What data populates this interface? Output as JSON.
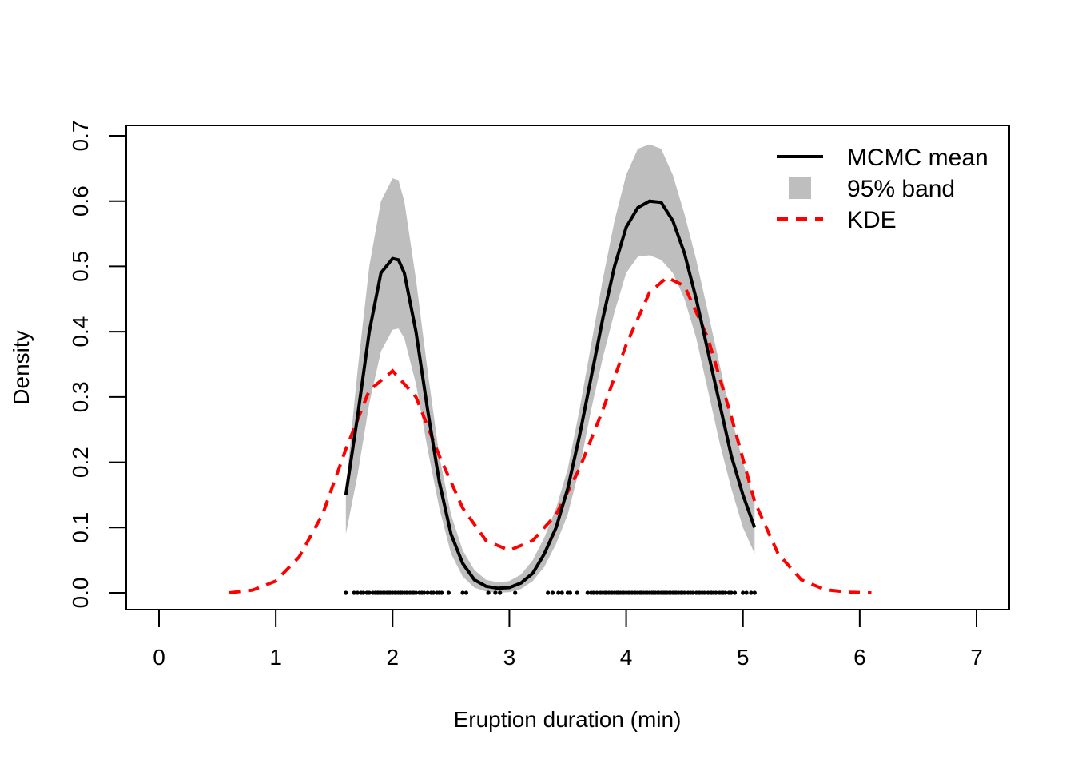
{
  "chart_data": {
    "type": "line",
    "title": "",
    "xlabel": "Eruption duration (min)",
    "ylabel": "Density",
    "xlim": [
      0,
      7
    ],
    "ylim": [
      0,
      0.7
    ],
    "x_ticks": [
      "0",
      "1",
      "2",
      "3",
      "4",
      "5",
      "6",
      "7"
    ],
    "y_ticks": [
      "0.0",
      "0.1",
      "0.2",
      "0.3",
      "0.4",
      "0.5",
      "0.6",
      "0.7"
    ],
    "grid": false,
    "legend_position": "top-right",
    "legend": [
      {
        "label": "MCMC mean",
        "style": "solid line",
        "color": "#000000"
      },
      {
        "label": "95% band",
        "style": "filled box",
        "color": "#bebebe"
      },
      {
        "label": "KDE",
        "style": "dashed line",
        "color": "#ff0000"
      }
    ],
    "series": [
      {
        "name": "MCMC mean",
        "color": "#000000",
        "x": [
          1.6,
          1.7,
          1.8,
          1.9,
          2.0,
          2.05,
          2.1,
          2.2,
          2.3,
          2.4,
          2.5,
          2.6,
          2.7,
          2.8,
          2.9,
          3.0,
          3.1,
          3.2,
          3.3,
          3.4,
          3.5,
          3.6,
          3.7,
          3.8,
          3.9,
          4.0,
          4.1,
          4.2,
          4.3,
          4.4,
          4.5,
          4.6,
          4.7,
          4.8,
          4.9,
          5.0,
          5.1
        ],
        "y": [
          0.15,
          0.27,
          0.4,
          0.49,
          0.512,
          0.51,
          0.49,
          0.4,
          0.28,
          0.17,
          0.09,
          0.045,
          0.02,
          0.01,
          0.007,
          0.008,
          0.015,
          0.03,
          0.06,
          0.1,
          0.16,
          0.24,
          0.33,
          0.42,
          0.5,
          0.56,
          0.59,
          0.6,
          0.598,
          0.57,
          0.52,
          0.45,
          0.37,
          0.29,
          0.21,
          0.15,
          0.1
        ]
      },
      {
        "name": "95% band upper",
        "color": "#bebebe",
        "x": [
          1.6,
          1.7,
          1.8,
          1.9,
          2.0,
          2.05,
          2.1,
          2.2,
          2.3,
          2.4,
          2.5,
          2.6,
          2.7,
          2.8,
          2.9,
          3.0,
          3.1,
          3.2,
          3.3,
          3.4,
          3.5,
          3.6,
          3.7,
          3.8,
          3.9,
          4.0,
          4.1,
          4.2,
          4.3,
          4.4,
          4.5,
          4.6,
          4.7,
          4.8,
          4.9,
          5.0,
          5.1
        ],
        "y": [
          0.16,
          0.34,
          0.5,
          0.6,
          0.635,
          0.632,
          0.6,
          0.48,
          0.34,
          0.21,
          0.12,
          0.065,
          0.035,
          0.02,
          0.016,
          0.018,
          0.028,
          0.05,
          0.085,
          0.13,
          0.19,
          0.28,
          0.38,
          0.48,
          0.57,
          0.64,
          0.68,
          0.687,
          0.68,
          0.64,
          0.58,
          0.51,
          0.43,
          0.35,
          0.27,
          0.2,
          0.14
        ]
      },
      {
        "name": "95% band lower",
        "color": "#bebebe",
        "x": [
          1.6,
          1.7,
          1.8,
          1.9,
          2.0,
          2.05,
          2.1,
          2.2,
          2.3,
          2.4,
          2.5,
          2.6,
          2.7,
          2.8,
          2.9,
          3.0,
          3.1,
          3.2,
          3.3,
          3.4,
          3.5,
          3.6,
          3.7,
          3.8,
          3.9,
          4.0,
          4.1,
          4.2,
          4.3,
          4.4,
          4.5,
          4.6,
          4.7,
          4.8,
          4.9,
          5.0,
          5.1
        ],
        "y": [
          0.09,
          0.18,
          0.29,
          0.37,
          0.403,
          0.405,
          0.39,
          0.32,
          0.22,
          0.13,
          0.06,
          0.025,
          0.008,
          0.002,
          0.0,
          0.001,
          0.006,
          0.018,
          0.04,
          0.075,
          0.12,
          0.19,
          0.28,
          0.36,
          0.43,
          0.49,
          0.515,
          0.517,
          0.51,
          0.49,
          0.45,
          0.39,
          0.31,
          0.23,
          0.16,
          0.1,
          0.06
        ]
      },
      {
        "name": "KDE",
        "color": "#ff0000",
        "x": [
          0.6,
          0.8,
          1.0,
          1.2,
          1.4,
          1.6,
          1.8,
          2.0,
          2.2,
          2.4,
          2.6,
          2.8,
          3.0,
          3.2,
          3.4,
          3.6,
          3.8,
          4.0,
          4.2,
          4.35,
          4.5,
          4.7,
          4.9,
          5.1,
          5.3,
          5.5,
          5.7,
          5.9,
          6.1
        ],
        "y": [
          0.0,
          0.004,
          0.018,
          0.055,
          0.12,
          0.22,
          0.31,
          0.34,
          0.3,
          0.21,
          0.13,
          0.08,
          0.065,
          0.08,
          0.12,
          0.19,
          0.28,
          0.38,
          0.46,
          0.483,
          0.47,
          0.39,
          0.27,
          0.14,
          0.06,
          0.02,
          0.005,
          0.001,
          0.0
        ]
      }
    ],
    "rug": {
      "color": "#000000",
      "x": [
        1.6,
        1.67,
        1.7,
        1.73,
        1.75,
        1.78,
        1.8,
        1.83,
        1.85,
        1.87,
        1.88,
        1.9,
        1.92,
        1.93,
        1.95,
        1.97,
        1.98,
        2.0,
        2.02,
        2.03,
        2.05,
        2.07,
        2.08,
        2.1,
        2.12,
        2.13,
        2.15,
        2.17,
        2.18,
        2.2,
        2.23,
        2.25,
        2.27,
        2.3,
        2.33,
        2.35,
        2.38,
        2.4,
        2.42,
        2.48,
        2.6,
        2.63,
        2.82,
        2.88,
        2.92,
        3.05,
        3.33,
        3.37,
        3.42,
        3.45,
        3.5,
        3.52,
        3.58,
        3.67,
        3.7,
        3.72,
        3.75,
        3.78,
        3.8,
        3.82,
        3.83,
        3.85,
        3.87,
        3.88,
        3.9,
        3.92,
        3.93,
        3.95,
        3.97,
        3.98,
        4.0,
        4.02,
        4.03,
        4.05,
        4.07,
        4.08,
        4.1,
        4.12,
        4.13,
        4.15,
        4.17,
        4.18,
        4.2,
        4.22,
        4.23,
        4.25,
        4.27,
        4.28,
        4.3,
        4.32,
        4.33,
        4.35,
        4.37,
        4.38,
        4.4,
        4.42,
        4.43,
        4.45,
        4.47,
        4.48,
        4.5,
        4.53,
        4.55,
        4.57,
        4.6,
        4.62,
        4.63,
        4.65,
        4.67,
        4.7,
        4.72,
        4.73,
        4.75,
        4.77,
        4.8,
        4.82,
        4.83,
        4.85,
        4.88,
        4.9,
        4.93,
        5.0,
        5.03,
        5.07,
        5.1
      ]
    }
  }
}
